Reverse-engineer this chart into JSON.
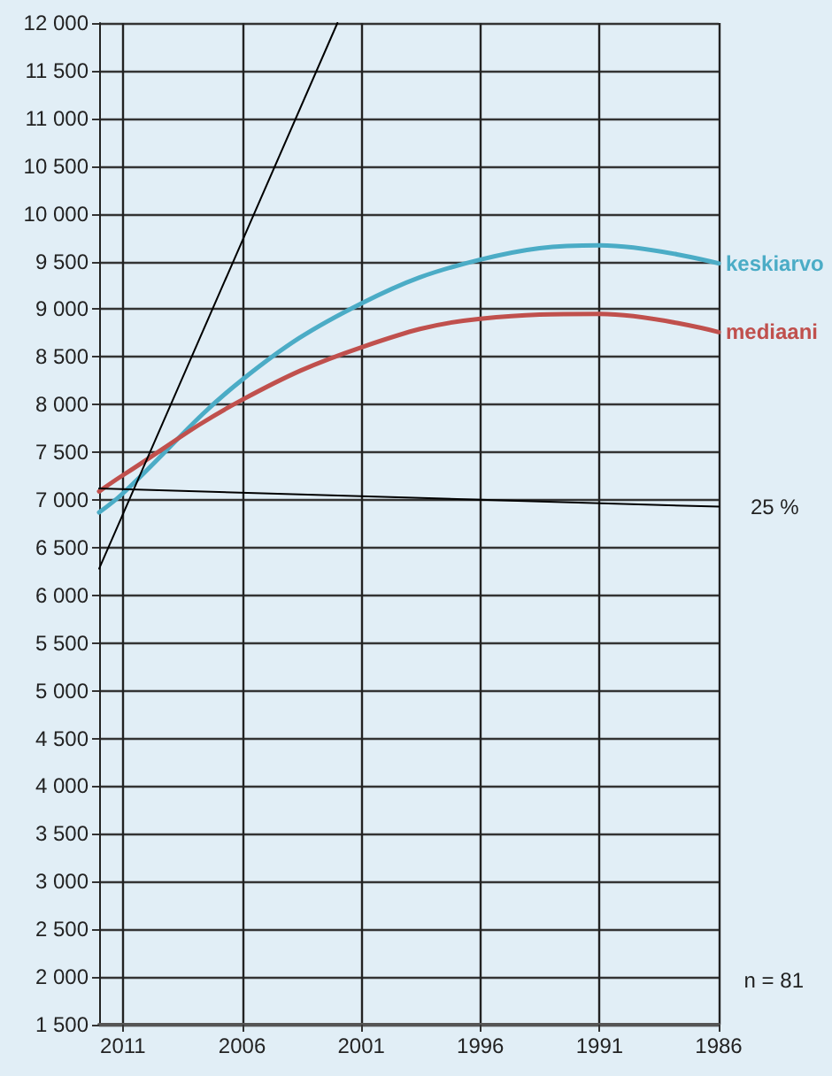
{
  "chart_data": {
    "type": "line",
    "xlim": [
      2012,
      1986
    ],
    "xticks": [
      2011,
      2006,
      2001,
      1996,
      1991,
      1986
    ],
    "ylim": [
      1500,
      12000
    ],
    "yticks": [
      {
        "value": 1500,
        "label": "1 500"
      },
      {
        "value": 2000,
        "label": "2 000"
      },
      {
        "value": 2500,
        "label": "2 500"
      },
      {
        "value": 3000,
        "label": "3 000"
      },
      {
        "value": 3500,
        "label": "3 500"
      },
      {
        "value": 4000,
        "label": "4 000"
      },
      {
        "value": 4500,
        "label": "4 500"
      },
      {
        "value": 5000,
        "label": "5 000"
      },
      {
        "value": 5500,
        "label": "5 500"
      },
      {
        "value": 6000,
        "label": "6 000"
      },
      {
        "value": 6500,
        "label": "6 500"
      },
      {
        "value": 7000,
        "label": "7 000"
      },
      {
        "value": 7500,
        "label": "7 500"
      },
      {
        "value": 8000,
        "label": "8 000"
      },
      {
        "value": 8500,
        "label": "8 500"
      },
      {
        "value": 9000,
        "label": "9 000"
      },
      {
        "value": 9500,
        "label": "9 500"
      },
      {
        "value": 10000,
        "label": "10 000"
      },
      {
        "value": 10500,
        "label": "10 500"
      },
      {
        "value": 11000,
        "label": "11 000"
      },
      {
        "value": 11500,
        "label": "11 500"
      },
      {
        "value": 12000,
        "label": "12 000"
      }
    ],
    "series": [
      {
        "name": "keskiarvo",
        "color": "#4bacc6",
        "x": [
          2012,
          2011,
          2006,
          2001,
          1996,
          1991,
          1986
        ],
        "values": [
          6870,
          7070,
          8260,
          9060,
          9520,
          9670,
          9480
        ]
      },
      {
        "name": "mediaani",
        "color": "#c0504d",
        "x": [
          2012,
          2011,
          2006,
          2001,
          1996,
          1991,
          1986
        ],
        "values": [
          7090,
          7260,
          8050,
          8600,
          8900,
          8950,
          8760
        ]
      },
      {
        "name": "25 %",
        "color": "#000000",
        "x": [
          2012,
          1986
        ],
        "values": [
          7120,
          6930
        ]
      },
      {
        "color": "#000000",
        "x": [
          2012,
          2002
        ],
        "values": [
          6280,
          12000
        ]
      }
    ],
    "annotations": [
      "n = 81"
    ],
    "grid": true,
    "marker": "none",
    "line_style": "solid"
  }
}
